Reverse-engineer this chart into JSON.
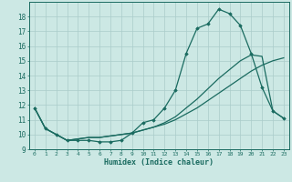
{
  "xlabel": "Humidex (Indice chaleur)",
  "background_color": "#cce8e4",
  "grid_color": "#aaccca",
  "line_color": "#1a6b60",
  "xlim": [
    -0.5,
    23.5
  ],
  "ylim": [
    9,
    19
  ],
  "yticks": [
    9,
    10,
    11,
    12,
    13,
    14,
    15,
    16,
    17,
    18
  ],
  "xticks": [
    0,
    1,
    2,
    3,
    4,
    5,
    6,
    7,
    8,
    9,
    10,
    11,
    12,
    13,
    14,
    15,
    16,
    17,
    18,
    19,
    20,
    21,
    22,
    23
  ],
  "series1_x": [
    0,
    1,
    2,
    3,
    4,
    5,
    6,
    7,
    8,
    9,
    10,
    11,
    12,
    13,
    14,
    15,
    16,
    17,
    18,
    19,
    20,
    21,
    22,
    23
  ],
  "series1_y": [
    11.8,
    10.4,
    10.0,
    9.6,
    9.6,
    9.6,
    9.5,
    9.5,
    9.6,
    10.1,
    10.8,
    11.0,
    11.8,
    13.0,
    15.5,
    17.2,
    17.5,
    18.5,
    18.2,
    17.4,
    15.5,
    13.2,
    11.6,
    11.1
  ],
  "series2_x": [
    0,
    1,
    2,
    3,
    4,
    5,
    6,
    7,
    8,
    9,
    10,
    11,
    12,
    13,
    14,
    15,
    16,
    17,
    18,
    19,
    20,
    21,
    22,
    23
  ],
  "series2_y": [
    11.8,
    10.4,
    10.0,
    9.6,
    9.7,
    9.8,
    9.8,
    9.9,
    10.0,
    10.1,
    10.3,
    10.5,
    10.7,
    11.0,
    11.4,
    11.8,
    12.3,
    12.8,
    13.3,
    13.8,
    14.3,
    14.7,
    15.0,
    15.2
  ],
  "series3_x": [
    0,
    1,
    2,
    3,
    4,
    5,
    6,
    7,
    8,
    9,
    10,
    11,
    12,
    13,
    14,
    15,
    16,
    17,
    18,
    19,
    20,
    21,
    22,
    23
  ],
  "series3_y": [
    11.8,
    10.4,
    10.0,
    9.6,
    9.7,
    9.8,
    9.8,
    9.9,
    10.0,
    10.1,
    10.3,
    10.5,
    10.8,
    11.2,
    11.8,
    12.4,
    13.1,
    13.8,
    14.4,
    15.0,
    15.4,
    15.3,
    11.6,
    11.1
  ]
}
